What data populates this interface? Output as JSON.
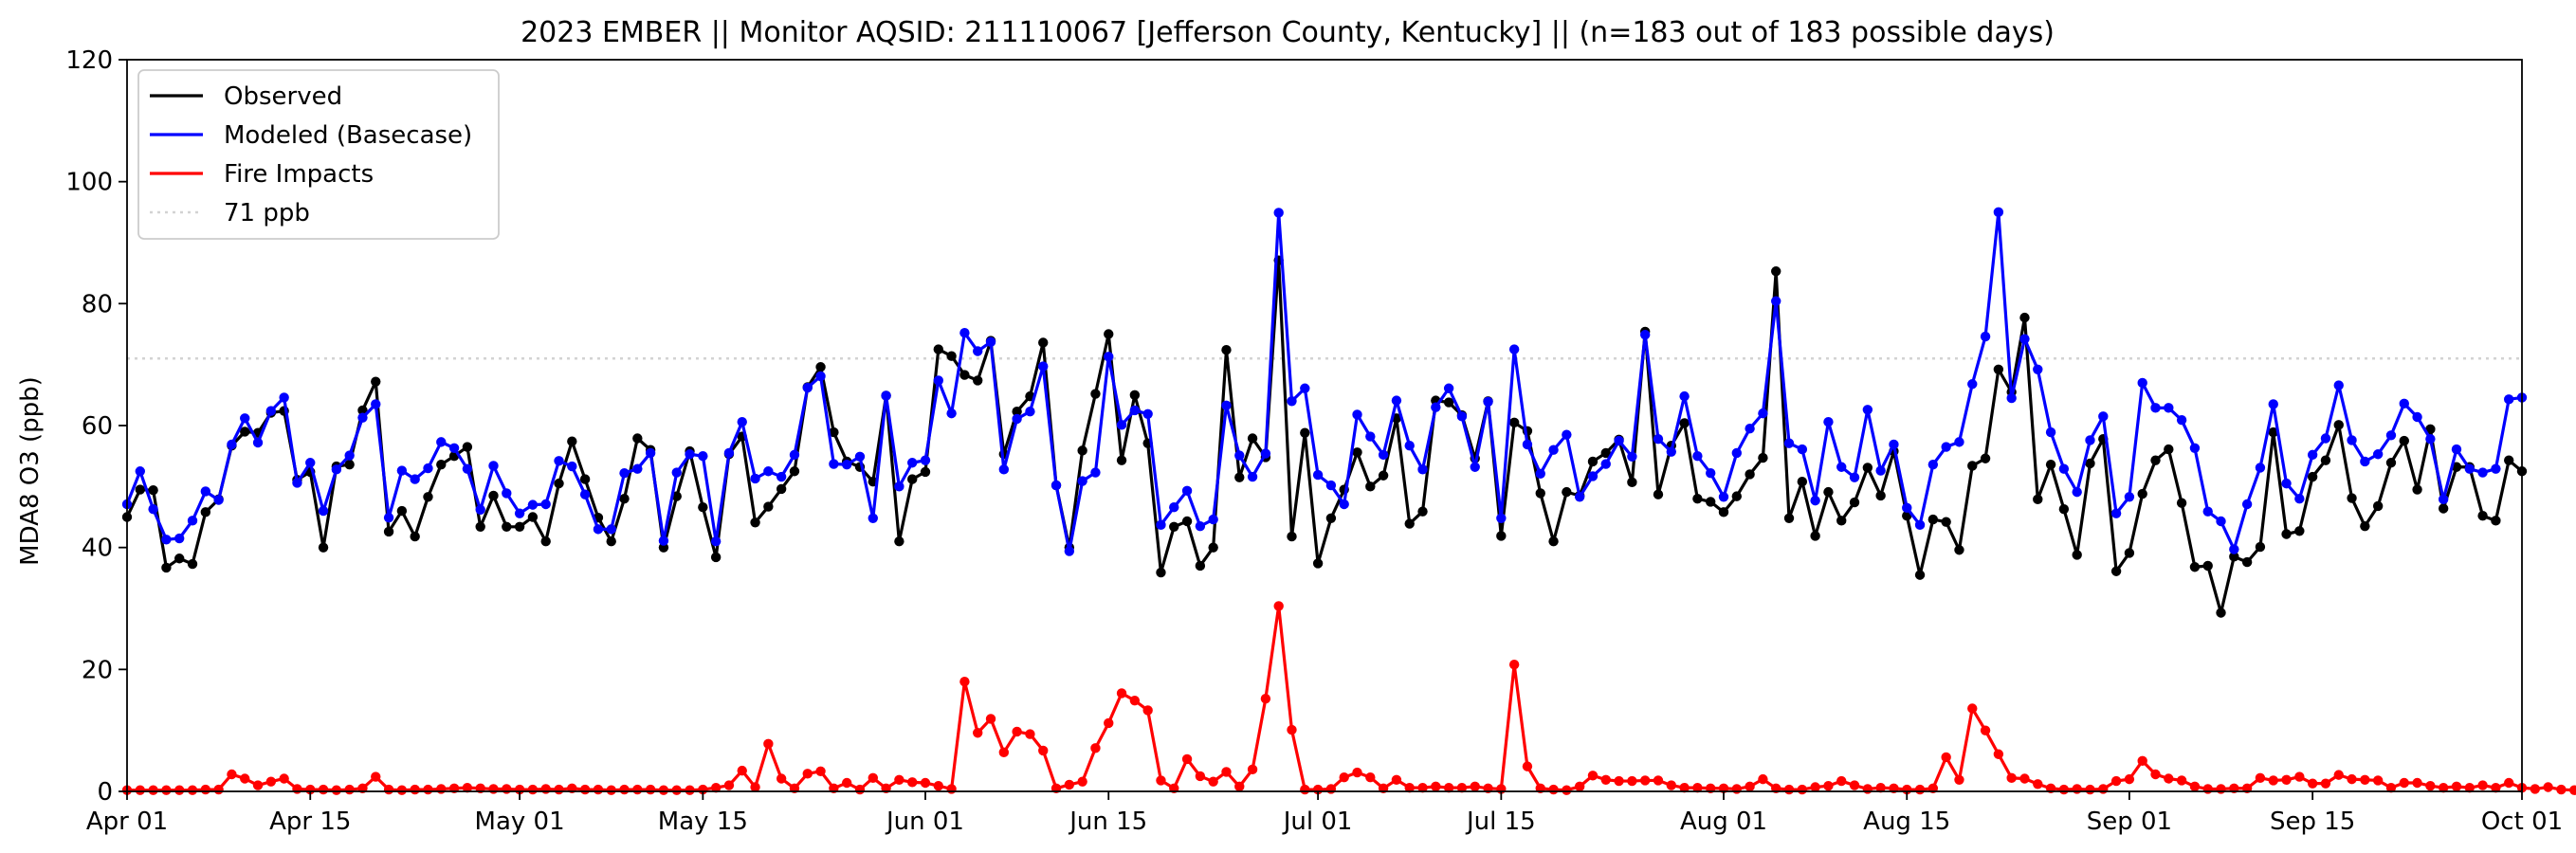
{
  "chart_data": {
    "type": "line",
    "title": "2023 EMBER || Monitor AQSID: 211110067 [Jefferson County, Kentucky] || (n=183 out of 183 possible days)",
    "xlabel": "",
    "ylabel": "MDA8 O3 (ppb)",
    "ylim": [
      0,
      120
    ],
    "xlim": [
      "2023-04-01",
      "2023-10-01"
    ],
    "x_start": "2023-04-01",
    "x_ticks": [
      "Apr 01",
      "Apr 15",
      "May 01",
      "May 15",
      "Jun 01",
      "Jun 15",
      "Jul 01",
      "Jul 15",
      "Aug 01",
      "Aug 15",
      "Sep 01",
      "Sep 15",
      "Oct 01"
    ],
    "x_tick_dates": [
      "2023-04-01",
      "2023-04-15",
      "2023-05-01",
      "2023-05-15",
      "2023-06-01",
      "2023-06-15",
      "2023-07-01",
      "2023-07-15",
      "2023-08-01",
      "2023-08-15",
      "2023-09-01",
      "2023-09-15",
      "2023-10-01"
    ],
    "y_ticks": [
      0,
      20,
      40,
      60,
      80,
      100,
      120
    ],
    "legend_position": "top-left",
    "grid": false,
    "threshold": {
      "name": "71 ppb",
      "value": 71,
      "color": "#d3d3d3"
    },
    "series": [
      {
        "name": "Observed",
        "color": "#000000",
        "values": [
          45,
          49.5,
          49.4,
          36.7,
          38.2,
          37.3,
          45.8,
          47.9,
          56.7,
          59,
          58.8,
          62.1,
          62.4,
          51.1,
          52.4,
          40,
          53.3,
          53.6,
          62.5,
          67.2,
          42.6,
          46,
          41.8,
          48.3,
          53.6,
          55,
          56.5,
          43.4,
          48.5,
          43.4,
          43.4,
          45,
          41,
          50.5,
          57.4,
          51.2,
          44.9,
          41,
          48,
          57.9,
          56,
          40,
          48.4,
          55.8,
          46.6,
          38.4,
          55.3,
          58.2,
          44.1,
          46.7,
          49.6,
          52.5,
          66.3,
          69.6,
          58.9,
          54.1,
          53.2,
          50.8,
          64.9,
          41,
          51.2,
          52.4,
          72.5,
          71.4,
          68.3,
          67.4,
          73.9,
          55.3,
          62.3,
          64.8,
          73.6,
          50.2,
          40,
          55.9,
          65.2,
          75,
          54.3,
          65,
          57.1,
          35.9,
          43.4,
          44.3,
          37,
          40,
          72.4,
          51.5,
          57.9,
          54.8,
          87.1,
          41.8,
          58.8,
          37.4,
          44.8,
          49.5,
          55.6,
          50,
          51.8,
          61.2,
          43.9,
          45.9,
          64.1,
          63.8,
          61.7,
          54.6,
          64,
          41.9,
          60.5,
          59.1,
          48.9,
          41,
          49.1,
          48.5,
          54.1,
          55.5,
          57.7,
          50.7,
          75.4,
          48.7,
          56.7,
          60.4,
          48,
          47.5,
          45.8,
          48.4,
          52,
          54.7,
          85.3,
          44.8,
          50.8,
          41.9,
          49.1,
          44.4,
          47.4,
          53.1,
          48.5,
          55.8,
          45.2,
          35.5,
          44.6,
          44.2,
          39.6,
          53.4,
          54.6,
          69.2,
          65.5,
          77.7,
          47.9,
          53.6,
          46.3,
          38.8,
          53.8,
          57.8,
          36.1,
          39.1,
          48.8,
          54.3,
          56.1,
          47.3,
          36.8,
          37,
          29.3,
          38.5,
          37.6,
          40.1,
          58.9,
          42.2,
          42.7,
          51.6,
          54.3,
          60.1,
          48.1,
          43.5,
          46.8,
          53.9,
          57.5,
          49.5,
          59.4,
          46.4,
          53.2,
          53.2,
          45.2,
          44.4,
          54.3,
          52.5
        ]
      },
      {
        "name": "Modeled (Basecase)",
        "color": "#0000ff",
        "values": [
          47.1,
          52.5,
          46.3,
          41.3,
          41.5,
          44.4,
          49.2,
          47.8,
          56.9,
          61.2,
          57.2,
          62.4,
          64.6,
          50.6,
          53.9,
          46,
          52.8,
          55.1,
          61.3,
          63.5,
          44.9,
          52.6,
          51.2,
          53,
          57.3,
          56.3,
          52.9,
          46.2,
          53.4,
          48.9,
          45.6,
          47,
          47.1,
          54.2,
          53.3,
          48.7,
          43,
          43,
          52.2,
          52.9,
          55.5,
          41.1,
          52.3,
          55.3,
          55,
          41,
          55.5,
          60.6,
          51.3,
          52.5,
          51.6,
          55.2,
          66.2,
          68.1,
          53.7,
          53.6,
          54.9,
          44.8,
          64.9,
          50,
          53.9,
          54.3,
          67.4,
          62,
          75.2,
          72.2,
          73.7,
          52.8,
          61.1,
          62.3,
          69.7,
          50.2,
          39.4,
          50.9,
          52.3,
          71.3,
          60.1,
          62.5,
          61.9,
          43.7,
          46.6,
          49.3,
          43.5,
          44.6,
          63.3,
          55.1,
          51.6,
          55.4,
          94.9,
          64,
          66.1,
          51.9,
          50.2,
          47.1,
          61.8,
          58.2,
          55.2,
          64.1,
          56.7,
          52.8,
          63,
          66.1,
          61.5,
          53.2,
          63.9,
          44.8,
          72.5,
          56.9,
          52.1,
          56,
          58.5,
          48.3,
          51.7,
          53.7,
          57.5,
          54.9,
          74.9,
          57.8,
          55.7,
          64.8,
          55,
          52.2,
          48.3,
          55.5,
          59.5,
          62,
          80.4,
          57.1,
          56.1,
          47.7,
          60.6,
          53.2,
          51.5,
          62.6,
          52.6,
          56.9,
          46.5,
          43.7,
          53.6,
          56.5,
          57.3,
          66.8,
          74.6,
          95,
          64.5,
          74.2,
          69.2,
          58.9,
          52.9,
          49.1,
          57.6,
          61.5,
          45.6,
          48.3,
          67,
          62.9,
          62.9,
          60.9,
          56.3,
          45.9,
          44.3,
          39.7,
          47.1,
          53.1,
          63.5,
          50.5,
          48,
          55.2,
          57.9,
          66.6,
          57.6,
          54.1,
          55.3,
          58.4,
          63.6,
          61.4,
          57.8,
          47.9,
          56.1,
          52.9,
          52.3,
          52.9,
          64.3,
          64.6
        ]
      },
      {
        "name": "Fire Impacts",
        "color": "#ff0000",
        "values": [
          0.2,
          0.2,
          0.2,
          0.2,
          0.2,
          0.2,
          0.3,
          0.3,
          2.8,
          2.1,
          1,
          1.6,
          2.1,
          0.4,
          0.3,
          0.3,
          0.2,
          0.3,
          0.5,
          2.4,
          0.3,
          0.2,
          0.3,
          0.3,
          0.4,
          0.5,
          0.6,
          0.5,
          0.4,
          0.4,
          0.3,
          0.3,
          0.4,
          0.3,
          0.5,
          0.3,
          0.3,
          0.2,
          0.3,
          0.3,
          0.3,
          0.2,
          0.2,
          0.2,
          0.3,
          0.6,
          1,
          3.4,
          0.7,
          7.8,
          2.1,
          0.5,
          2.9,
          3.3,
          0.5,
          1.4,
          0.3,
          2.2,
          0.5,
          1.9,
          1.5,
          1.4,
          0.9,
          0.4,
          18,
          9.6,
          11.9,
          6.4,
          9.8,
          9.4,
          6.7,
          0.5,
          1.1,
          1.6,
          7.1,
          11.2,
          16.1,
          14.9,
          13.3,
          1.8,
          0.5,
          5.3,
          2.5,
          1.6,
          3.2,
          0.8,
          3.6,
          15.2,
          30.4,
          10.1,
          0.3,
          0.3,
          0.4,
          2.3,
          3.1,
          2.3,
          0.5,
          1.9,
          0.6,
          0.6,
          0.8,
          0.6,
          0.6,
          0.8,
          0.5,
          0.4,
          20.8,
          4.1,
          0.5,
          0.3,
          0.2,
          0.8,
          2.6,
          1.9,
          1.7,
          1.7,
          1.8,
          1.8,
          1,
          0.6,
          0.6,
          0.5,
          0.5,
          0.4,
          0.8,
          2,
          0.5,
          0.3,
          0.3,
          0.7,
          0.9,
          1.7,
          1,
          0.4,
          0.6,
          0.5,
          0.3,
          0.3,
          0.5,
          5.6,
          1.9,
          13.6,
          10,
          6.1,
          2.2,
          2.1,
          1.2,
          0.5,
          0.3,
          0.4,
          0.3,
          0.4,
          1.7,
          2,
          5,
          2.8,
          2.1,
          1.8,
          0.8,
          0.4,
          0.4,
          0.5,
          0.5,
          2.2,
          1.8,
          1.9,
          2.4,
          1.3,
          1.3,
          2.7,
          2,
          1.9,
          1.8,
          0.6,
          1.4,
          1.4,
          0.9,
          0.6,
          0.8,
          0.6,
          1,
          0.6,
          1.4,
          0.6,
          0.4,
          0.7,
          0.3,
          0.2
        ]
      }
    ]
  }
}
